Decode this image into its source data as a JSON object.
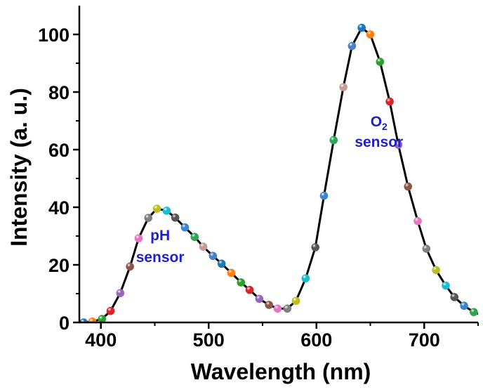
{
  "chart_data": {
    "type": "line",
    "xlabel": "Wavelength (nm)",
    "ylabel": "Intensity (a. u.)",
    "xlim": [
      380,
      750
    ],
    "ylim": [
      0,
      110
    ],
    "x_ticks": [
      400,
      500,
      600,
      700
    ],
    "y_ticks": [
      0,
      20,
      40,
      60,
      80,
      100
    ],
    "grid": false,
    "series": [
      {
        "color": "#000000",
        "marker_colors": [
          "#1f77b4",
          "#ff7f0e",
          "#2ca02c",
          "#d62728",
          "#9467bd",
          "#8c564b",
          "#e377c2",
          "#7f7f7f",
          "#bcbd22",
          "#17becf",
          "#555555",
          "#3a86c8",
          "#31a354",
          "#c49c94",
          "#4a7fc1"
        ],
        "x": [
          384,
          392,
          401,
          409,
          418,
          427,
          435,
          444,
          452,
          461,
          469,
          478,
          487,
          495,
          504,
          512,
          521,
          530,
          538,
          547,
          556,
          564,
          573,
          581,
          590,
          599,
          607,
          616,
          625,
          633,
          642,
          650,
          659,
          668,
          676,
          685,
          694,
          702,
          711,
          720,
          728,
          737,
          746,
          754
        ],
        "y": [
          0,
          0.3,
          1.2,
          4,
          10.2,
          19.4,
          29.2,
          36.3,
          39.5,
          38.8,
          36.4,
          33,
          29.7,
          26.3,
          23.1,
          20.4,
          17.2,
          13.9,
          11.3,
          8.2,
          6.1,
          4.8,
          4.8,
          7.5,
          15.3,
          26.1,
          44,
          63.3,
          81.7,
          96,
          102.3,
          100,
          90.5,
          76.7,
          61.7,
          47.2,
          35.2,
          25.6,
          18.2,
          12.8,
          8.8,
          5.8,
          3.6,
          2.4
        ]
      }
    ],
    "annotations": [
      {
        "text": "pH",
        "x": 455,
        "y": 28.5,
        "color": "#1f1fcc"
      },
      {
        "text": "sensor",
        "x": 455,
        "y": 21,
        "color": "#1f1fcc"
      },
      {
        "text": "O",
        "sub": "2",
        "x": 658,
        "y": 68,
        "color": "#1f1fcc"
      },
      {
        "text": "sensor",
        "x": 658,
        "y": 61,
        "color": "#1f1fcc"
      }
    ]
  }
}
